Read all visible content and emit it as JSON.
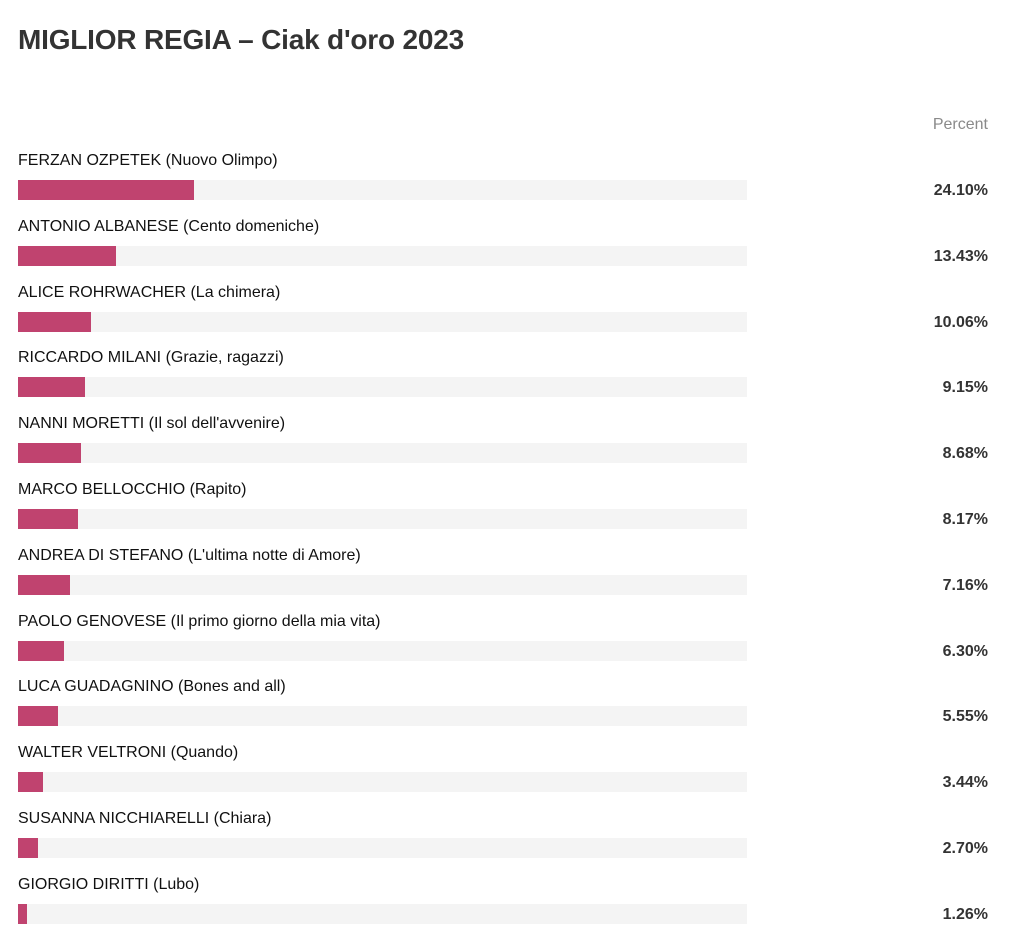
{
  "chart_data": {
    "type": "bar",
    "orientation": "horizontal",
    "title": "MIGLIOR REGIA – Ciak d'oro 2023",
    "value_column_label": "Percent",
    "bar_color": "#c0436f",
    "track_color": "#f4f4f4",
    "xlim": [
      0,
      100
    ],
    "categories": [
      "FERZAN OZPETEK (Nuovo Olimpo)",
      "ANTONIO ALBANESE (Cento domeniche)",
      "ALICE ROHRWACHER (La chimera)",
      "RICCARDO MILANI (Grazie, ragazzi)",
      "NANNI MORETTI (Il sol dell'avvenire)",
      "MARCO BELLOCCHIO (Rapito)",
      "ANDREA DI STEFANO (L'ultima notte di Amore)",
      "PAOLO GENOVESE (Il primo giorno della mia vita)",
      "LUCA GUADAGNINO (Bones and all)",
      "WALTER VELTRONI (Quando)",
      "SUSANNA NICCHIARELLI (Chiara)",
      "GIORGIO DIRITTI (Lubo)"
    ],
    "values": [
      24.1,
      13.43,
      10.06,
      9.15,
      8.68,
      8.17,
      7.16,
      6.3,
      5.55,
      3.44,
      2.7,
      1.26
    ],
    "value_labels": [
      "24.10%",
      "13.43%",
      "10.06%",
      "9.15%",
      "8.68%",
      "8.17%",
      "7.16%",
      "6.30%",
      "5.55%",
      "3.44%",
      "2.70%",
      "1.26%"
    ]
  }
}
